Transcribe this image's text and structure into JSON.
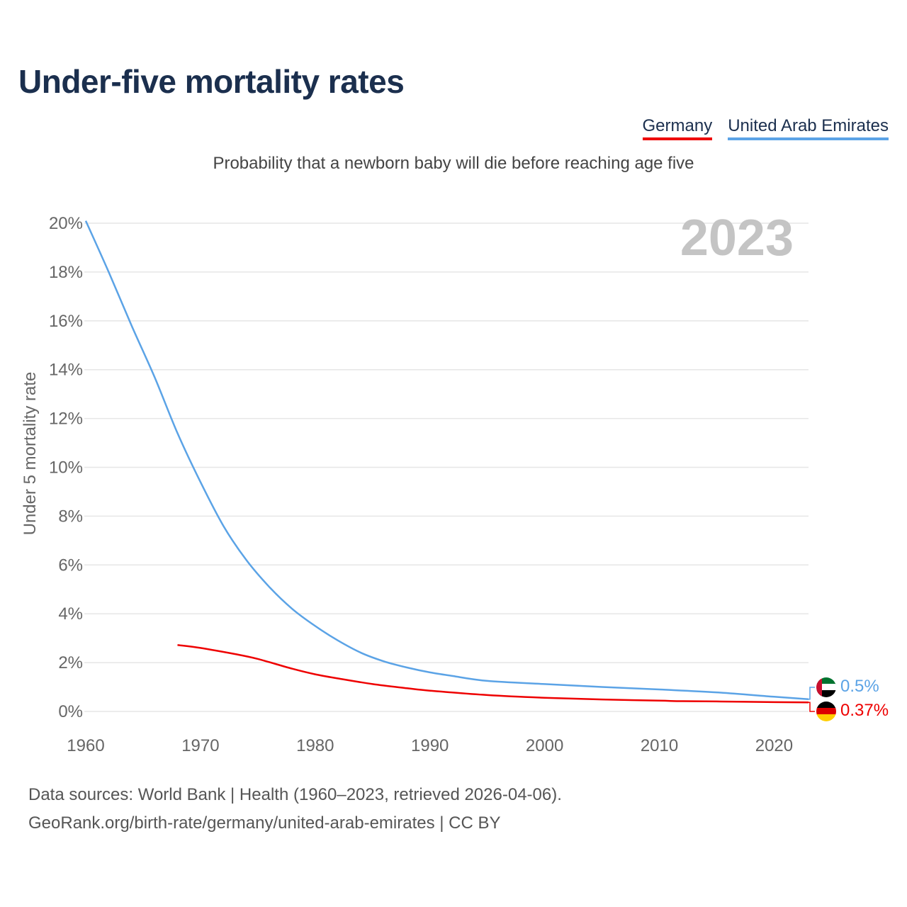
{
  "title": "Under-five mortality rates",
  "subtitle": "Probability that a newborn baby will die before reaching age five",
  "legend": [
    {
      "label": "Germany",
      "color": "#ee0000"
    },
    {
      "label": "United Arab Emirates",
      "color": "#5ba3e6"
    }
  ],
  "source_line1": "Data sources: World Bank | Health (1960–2023, retrieved 2026-04-06).",
  "source_line2": "GeoRank.org/birth-rate/germany/united-arab-emirates | CC BY",
  "chart_data": {
    "type": "line",
    "year_label": "2023",
    "ylabel": "Under 5 mortality rate",
    "xlim": [
      1960,
      2023
    ],
    "ylim": [
      0,
      20
    ],
    "xticks": [
      1960,
      1970,
      1980,
      1990,
      2000,
      2010,
      2020
    ],
    "yticks": [
      0,
      2,
      4,
      6,
      8,
      10,
      12,
      14,
      16,
      18,
      20
    ],
    "ytick_suffix": "%",
    "grid": true,
    "series": [
      {
        "name": "United Arab Emirates",
        "color": "#5ba3e6",
        "end_label": "0.5%",
        "points": [
          [
            1960,
            20.1
          ],
          [
            1962,
            18.0
          ],
          [
            1964,
            15.8
          ],
          [
            1966,
            13.7
          ],
          [
            1968,
            11.4
          ],
          [
            1970,
            9.4
          ],
          [
            1972,
            7.6
          ],
          [
            1974,
            6.2
          ],
          [
            1976,
            5.1
          ],
          [
            1978,
            4.2
          ],
          [
            1980,
            3.5
          ],
          [
            1982,
            2.9
          ],
          [
            1984,
            2.4
          ],
          [
            1986,
            2.05
          ],
          [
            1988,
            1.8
          ],
          [
            1990,
            1.6
          ],
          [
            1992,
            1.45
          ],
          [
            1995,
            1.25
          ],
          [
            2000,
            1.12
          ],
          [
            2005,
            1.0
          ],
          [
            2010,
            0.9
          ],
          [
            2015,
            0.78
          ],
          [
            2020,
            0.6
          ],
          [
            2023,
            0.5
          ]
        ]
      },
      {
        "name": "Germany",
        "color": "#ee0000",
        "end_label": "0.37%",
        "points": [
          [
            1968,
            2.72
          ],
          [
            1970,
            2.6
          ],
          [
            1973,
            2.35
          ],
          [
            1975,
            2.15
          ],
          [
            1978,
            1.75
          ],
          [
            1980,
            1.52
          ],
          [
            1982,
            1.35
          ],
          [
            1985,
            1.12
          ],
          [
            1988,
            0.95
          ],
          [
            1990,
            0.85
          ],
          [
            1995,
            0.67
          ],
          [
            2000,
            0.56
          ],
          [
            2005,
            0.49
          ],
          [
            2010,
            0.44
          ],
          [
            2012,
            0.42
          ],
          [
            2015,
            0.41
          ],
          [
            2020,
            0.38
          ],
          [
            2023,
            0.37
          ]
        ]
      }
    ]
  }
}
